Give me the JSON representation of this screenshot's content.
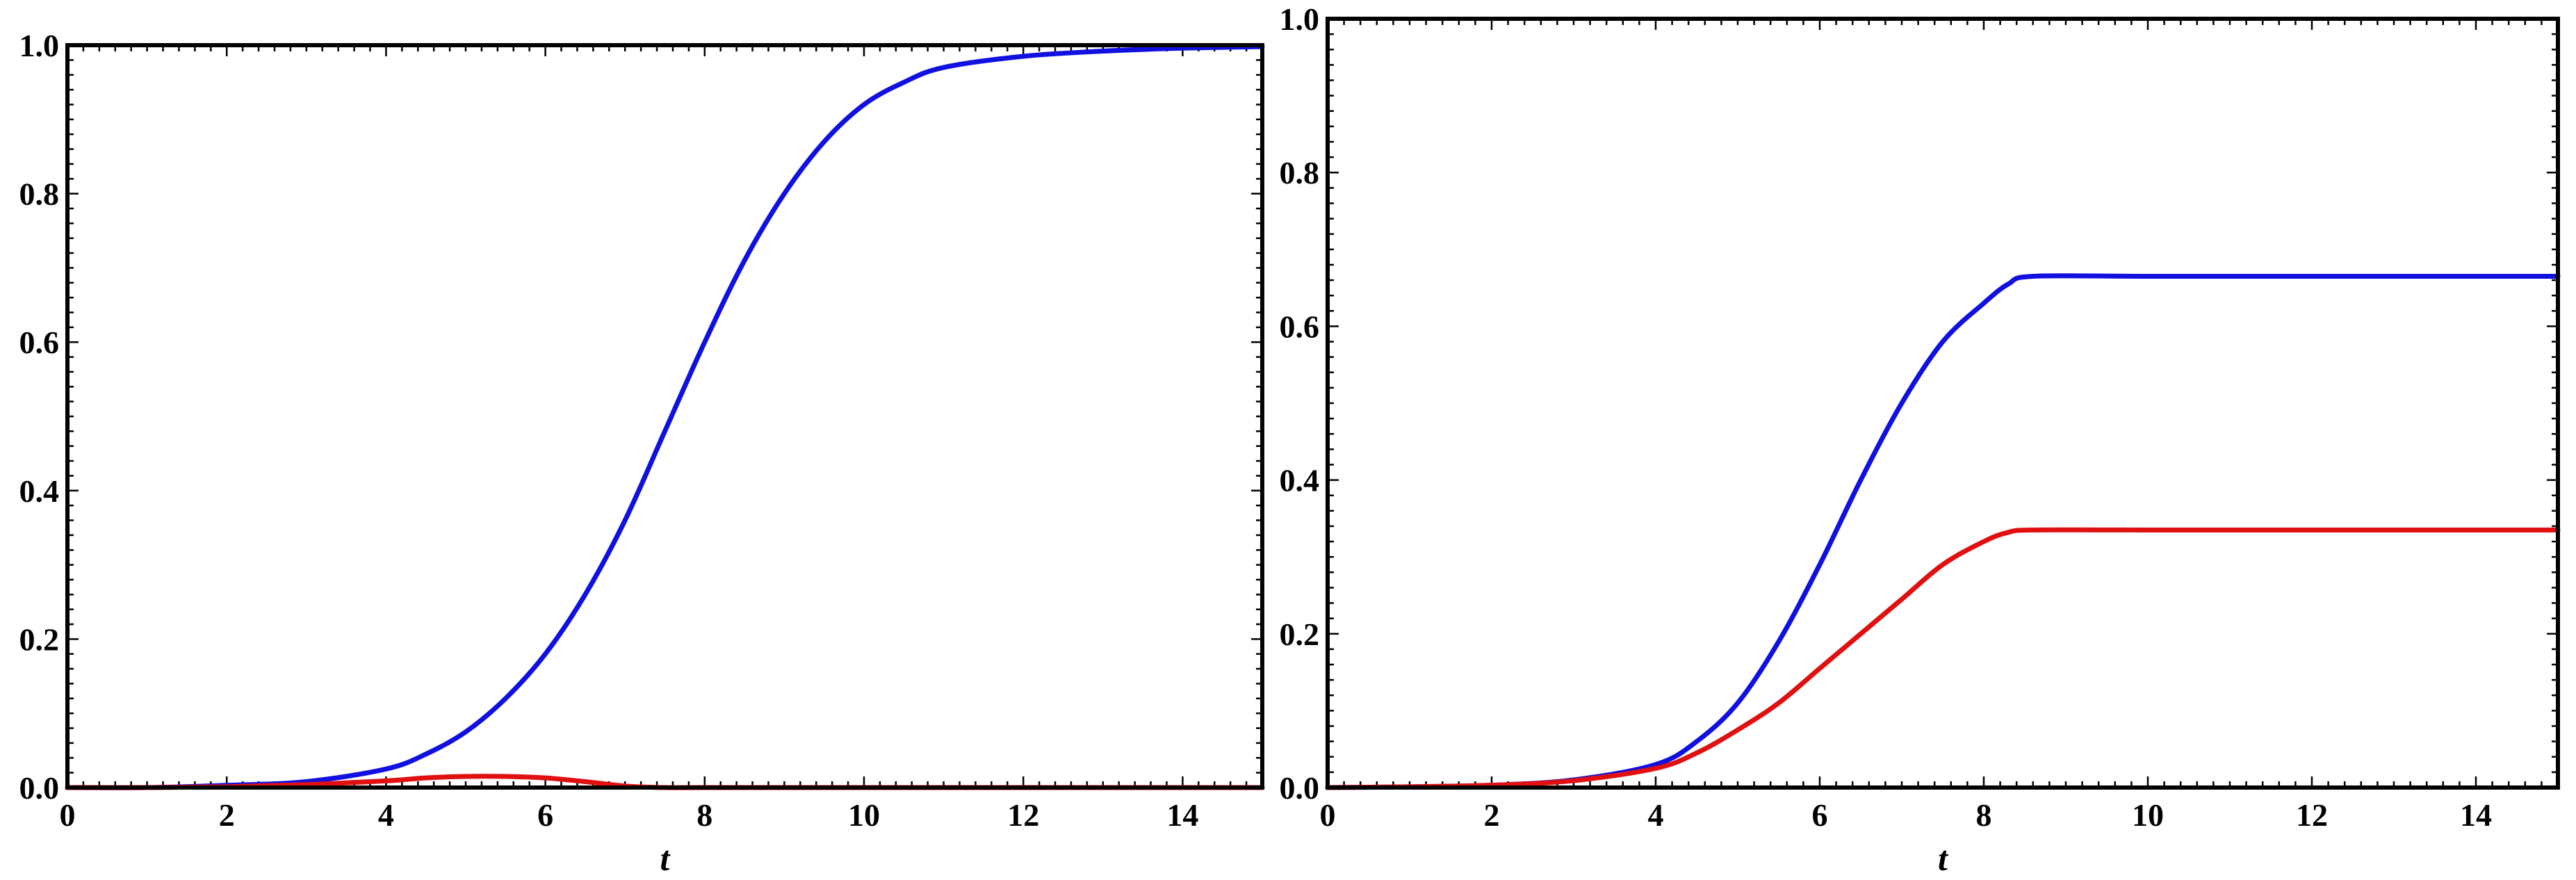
{
  "chart_data": [
    {
      "type": "line",
      "title": "",
      "xlabel": "t",
      "ylabel": "",
      "xlim": [
        0,
        15
      ],
      "ylim": [
        0,
        1
      ],
      "grid": false,
      "x_ticks": [
        "0",
        "2",
        "4",
        "6",
        "8",
        "10",
        "12",
        "14"
      ],
      "y_ticks": [
        "0.0",
        "0.2",
        "0.4",
        "0.6",
        "0.8",
        "1.0"
      ],
      "series": [
        {
          "color": "#1010e0",
          "x": [
            0,
            1,
            2,
            3,
            4,
            4.5,
            5,
            5.5,
            6,
            6.5,
            7,
            7.5,
            8,
            8.5,
            9,
            9.5,
            10,
            10.5,
            11,
            12,
            13,
            14,
            15
          ],
          "y": [
            0.0,
            0.0,
            0.003,
            0.008,
            0.025,
            0.045,
            0.075,
            0.12,
            0.18,
            0.26,
            0.36,
            0.48,
            0.6,
            0.71,
            0.8,
            0.87,
            0.92,
            0.95,
            0.97,
            0.985,
            0.992,
            0.996,
            0.998
          ]
        },
        {
          "color": "#e01010",
          "x": [
            0,
            1,
            2,
            3,
            4,
            4.5,
            5,
            5.5,
            6,
            6.5,
            7,
            7.5,
            8,
            10,
            12,
            14,
            15
          ],
          "y": [
            0.0,
            0.0,
            0.001,
            0.004,
            0.009,
            0.013,
            0.015,
            0.015,
            0.013,
            0.008,
            0.002,
            0.0,
            0.0,
            0.0,
            0.0,
            0.0,
            0.0
          ]
        }
      ]
    },
    {
      "type": "line",
      "title": "",
      "xlabel": "t",
      "ylabel": "",
      "xlim": [
        0,
        15
      ],
      "ylim": [
        0,
        1
      ],
      "grid": false,
      "x_ticks": [
        "0",
        "2",
        "4",
        "6",
        "8",
        "10",
        "12",
        "14"
      ],
      "y_ticks": [
        "0.0",
        "0.2",
        "0.4",
        "0.6",
        "0.8",
        "1.0"
      ],
      "series": [
        {
          "color": "#1010e0",
          "x": [
            0,
            1,
            2,
            3,
            4,
            4.5,
            5,
            5.5,
            6,
            6.5,
            7,
            7.5,
            8,
            8.3,
            8.6,
            10,
            12,
            14,
            15
          ],
          "y": [
            0.0,
            0.001,
            0.003,
            0.01,
            0.03,
            0.06,
            0.11,
            0.19,
            0.29,
            0.4,
            0.5,
            0.58,
            0.63,
            0.655,
            0.665,
            0.665,
            0.665,
            0.665,
            0.665
          ]
        },
        {
          "color": "#e01010",
          "x": [
            0,
            1,
            2,
            3,
            4,
            4.5,
            5,
            5.5,
            6,
            6.5,
            7,
            7.5,
            8,
            8.3,
            8.6,
            10,
            12,
            14,
            15
          ],
          "y": [
            0.0,
            0.001,
            0.003,
            0.009,
            0.025,
            0.045,
            0.075,
            0.11,
            0.155,
            0.2,
            0.245,
            0.29,
            0.32,
            0.332,
            0.335,
            0.335,
            0.335,
            0.335,
            0.335
          ]
        }
      ]
    }
  ]
}
